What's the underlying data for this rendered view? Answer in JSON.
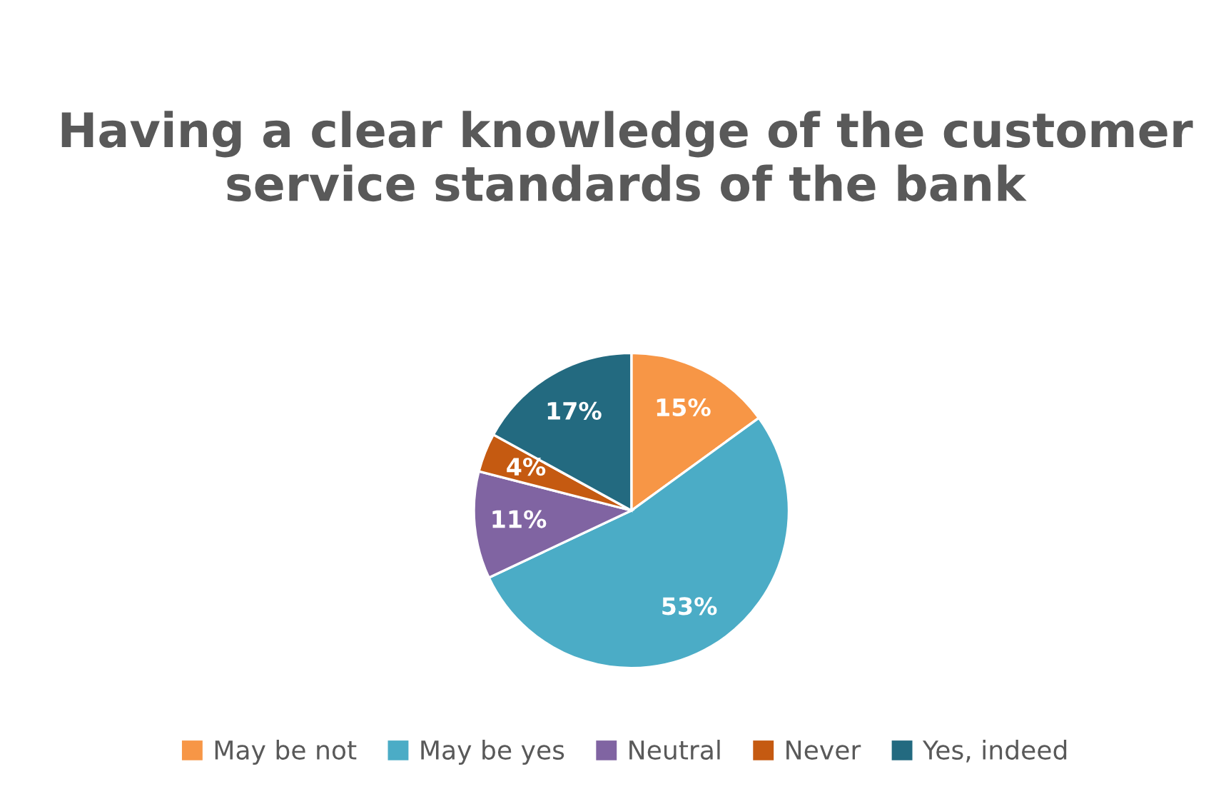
{
  "chart_data": {
    "type": "pie",
    "title": "Having a clear knowledge of the customer service standards of the bank",
    "categories": [
      "May be not",
      "May be yes",
      "Neutral",
      "Never",
      "Yes, indeed"
    ],
    "values": [
      15,
      53,
      11,
      4,
      17
    ],
    "value_labels": [
      "15%",
      "53%",
      "11%",
      "4%",
      "17%"
    ],
    "colors": [
      "#f79646",
      "#4bacc6",
      "#8064a2",
      "#c55a11",
      "#236a80"
    ],
    "legend": "bottom"
  }
}
